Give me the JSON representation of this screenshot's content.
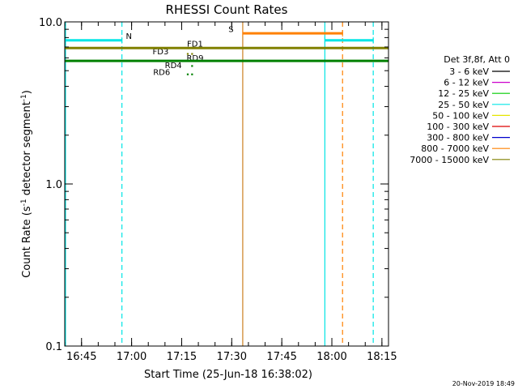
{
  "title": "RHESSI Count Rates",
  "stamp": "20-Nov-2019 18:49",
  "chart_data": {
    "type": "line",
    "title": "RHESSI Count Rates",
    "xlabel": "Start Time (25-Jun-18 16:38:02)",
    "ylabel_main": "Count Rate (s",
    "ylabel_sup1": "-1",
    "ylabel_mid": " detector segment",
    "ylabel_sup2": "-1",
    "ylabel_end": ")",
    "yscale": "log",
    "ylim": [
      0.1,
      10.0
    ],
    "xlim_minutes": [
      1.97,
      98.97
    ],
    "x_ticks": [
      {
        "label": "16:45",
        "minutes": 7
      },
      {
        "label": "17:00",
        "minutes": 22
      },
      {
        "label": "17:15",
        "minutes": 37
      },
      {
        "label": "17:30",
        "minutes": 52
      },
      {
        "label": "17:45",
        "minutes": 67
      },
      {
        "label": "18:00",
        "minutes": 82
      },
      {
        "label": "18:15",
        "minutes": 97
      }
    ],
    "y_ticks": [
      {
        "label": "10.0",
        "value": 10.0
      },
      {
        "label": "1.0",
        "value": 1.0
      },
      {
        "label": "0.1",
        "value": 0.1
      }
    ],
    "legend_header": "Det 3f,8f, Att 0",
    "legend": [
      {
        "label": "3 - 6 keV",
        "color": "#000000"
      },
      {
        "label": "6 - 12 keV",
        "color": "#cc00cc"
      },
      {
        "label": "12 - 25 keV",
        "color": "#00cc00"
      },
      {
        "label": "25 - 50 keV",
        "color": "#00e5e5"
      },
      {
        "label": "50 - 100 keV",
        "color": "#e5e500"
      },
      {
        "label": "100 - 300 keV",
        "color": "#dd0000"
      },
      {
        "label": "300 - 800 keV",
        "color": "#0000cc"
      },
      {
        "label": "800 - 7000 keV",
        "color": "#ff8000"
      },
      {
        "label": "7000 - 15000 keV",
        "color": "#808000"
      }
    ],
    "series": [
      {
        "color": "#808000",
        "width": 3,
        "segments": [
          [
            1.97,
            6.9,
            98.97,
            6.9
          ]
        ]
      },
      {
        "color": "#008000",
        "width": 3,
        "segments": [
          [
            1.97,
            5.75,
            98.97,
            5.75
          ]
        ]
      }
    ],
    "annotations": {
      "vlines": [
        {
          "minutes": 2.2,
          "color": "#00e5e5",
          "dash": false
        },
        {
          "minutes": 19.1,
          "color": "#00e5e5",
          "dash": true
        },
        {
          "minutes": 79.9,
          "color": "#00e5e5",
          "dash": false
        },
        {
          "minutes": 94.4,
          "color": "#00e5e5",
          "dash": true
        },
        {
          "minutes": 55.3,
          "color": "#cc8020",
          "dash": false
        },
        {
          "minutes": 85.2,
          "color": "#ff8000",
          "dash": true
        }
      ],
      "hbars": [
        {
          "x0": 2.2,
          "x1": 19.1,
          "value": 7.7,
          "color": "#00e5e5"
        },
        {
          "x0": 79.9,
          "x1": 94.4,
          "value": 7.7,
          "color": "#00e5e5"
        },
        {
          "x0": 55.3,
          "x1": 85.2,
          "value": 8.5,
          "color": "#ff8000"
        }
      ],
      "flag_labels": [
        {
          "text": "N",
          "minutes": 21.2,
          "value": 7.85,
          "color": "#00e5e5"
        },
        {
          "text": "S",
          "minutes": 51.8,
          "value": 8.65,
          "color": "#ff8000"
        }
      ],
      "detector_labels": [
        {
          "text": "FD1",
          "minutes": 41.0,
          "value": 7.05,
          "color": "#808000"
        },
        {
          "text": "FD3",
          "minutes": 30.7,
          "value": 6.3,
          "color": "#808000"
        },
        {
          "text": "RD9",
          "minutes": 41.0,
          "value": 5.75,
          "color": "#008000"
        },
        {
          "text": "RD4",
          "minutes": 34.5,
          "value": 5.2,
          "color": "#008000"
        },
        {
          "text": "RD6",
          "minutes": 31.0,
          "value": 4.7,
          "color": "#008000"
        }
      ],
      "dots": [
        {
          "minutes": 38.8,
          "value": 6.35,
          "color": "#808000"
        },
        {
          "minutes": 40.1,
          "value": 6.35,
          "color": "#808000"
        },
        {
          "minutes": 40.1,
          "value": 5.35,
          "color": "#008000"
        },
        {
          "minutes": 38.8,
          "value": 4.75,
          "color": "#008000"
        },
        {
          "minutes": 40.1,
          "value": 4.75,
          "color": "#008000"
        }
      ]
    }
  }
}
